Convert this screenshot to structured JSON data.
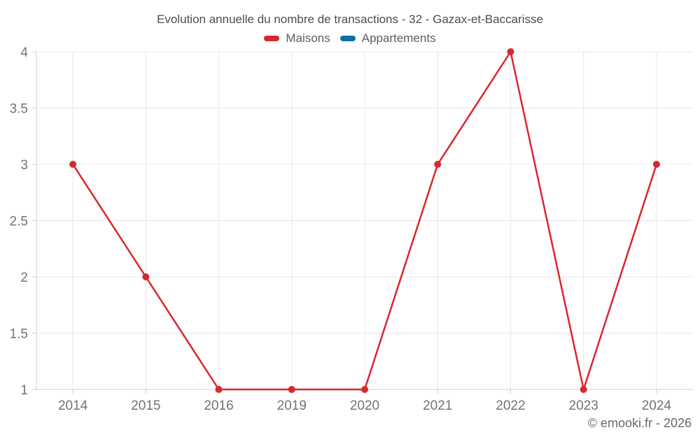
{
  "chart": {
    "title": "Evolution annuelle du nombre de transactions - 32 - Gazax-et-Baccarisse",
    "watermark": "© emooki.fr - 2026"
  },
  "chart_data": {
    "type": "line",
    "title": "Evolution annuelle du nombre de transactions - 32 - Gazax-et-Baccarisse",
    "categories": [
      "2014",
      "2015",
      "2016",
      "2019",
      "2020",
      "2021",
      "2022",
      "2023",
      "2024"
    ],
    "series": [
      {
        "name": "Maisons",
        "color": "#d9272e",
        "values": [
          3,
          2,
          1,
          1,
          1,
          3,
          4,
          1,
          3
        ]
      },
      {
        "name": "Appartements",
        "color": "#0e6fa0",
        "values": []
      }
    ],
    "xlabel": "",
    "ylabel": "",
    "ylim": [
      1,
      4
    ],
    "yticks": [
      1,
      1.5,
      2,
      2.5,
      3,
      3.5,
      4
    ],
    "grid": true,
    "legend_position": "top",
    "marker": "circle"
  }
}
